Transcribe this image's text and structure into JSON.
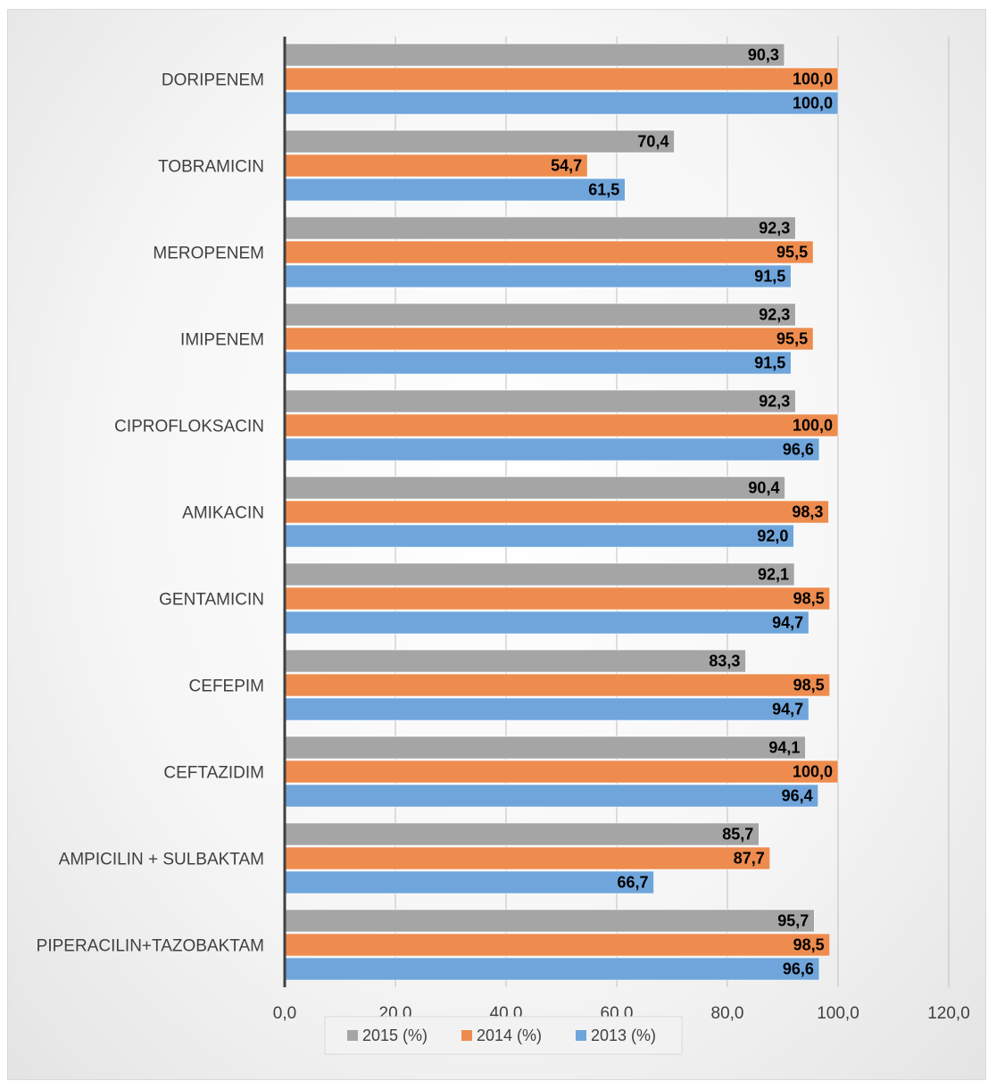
{
  "chart_data": {
    "type": "bar",
    "orientation": "horizontal",
    "categories": [
      "DORIPENEM",
      "TOBRAMICIN",
      "MEROPENEM",
      "IMIPENEM",
      "CIPROFLOKSACIN",
      "AMIKACIN",
      "GENTAMICIN",
      "CEFEPIM",
      "CEFTAZIDIM",
      "AMPICILIN + SULBAKTAM",
      "PIPERACILIN+TAZOBAKTAM"
    ],
    "series": [
      {
        "name": "2015 (%)",
        "color": "#a5a5a5",
        "values": [
          90.3,
          70.4,
          92.3,
          92.3,
          92.3,
          90.4,
          92.1,
          83.3,
          94.1,
          85.7,
          95.7
        ],
        "labels": [
          "90,3",
          "70,4",
          "92,3",
          "92,3",
          "92,3",
          "90,4",
          "92,1",
          "83,3",
          "94,1",
          "85,7",
          "95,7"
        ]
      },
      {
        "name": "2014 (%)",
        "color": "#ed8c4e",
        "values": [
          100.0,
          54.7,
          95.5,
          95.5,
          100.0,
          98.3,
          98.5,
          98.5,
          100.0,
          87.7,
          98.5
        ],
        "labels": [
          "100,0",
          "54,7",
          "95,5",
          "95,5",
          "100,0",
          "98,3",
          "98,5",
          "98,5",
          "100,0",
          "87,7",
          "98,5"
        ]
      },
      {
        "name": "2013 (%)",
        "color": "#6fa5db",
        "values": [
          100.0,
          61.5,
          91.5,
          91.5,
          96.6,
          92.0,
          94.7,
          94.7,
          96.4,
          66.7,
          96.6
        ],
        "labels": [
          "100,0",
          "61,5",
          "91,5",
          "91,5",
          "96,6",
          "92,0",
          "94,7",
          "94,7",
          "96,4",
          "66,7",
          "96,6"
        ]
      }
    ],
    "xlim": [
      0,
      120
    ],
    "xticks": [
      0,
      20,
      40,
      60,
      80,
      100,
      120
    ],
    "xtick_labels": [
      "0,0",
      "20,0",
      "40,0",
      "60,0",
      "80,0",
      "100,0",
      "120,0"
    ],
    "grid": "vertical",
    "legend_position": "bottom",
    "title": "",
    "xlabel": "",
    "ylabel": ""
  }
}
